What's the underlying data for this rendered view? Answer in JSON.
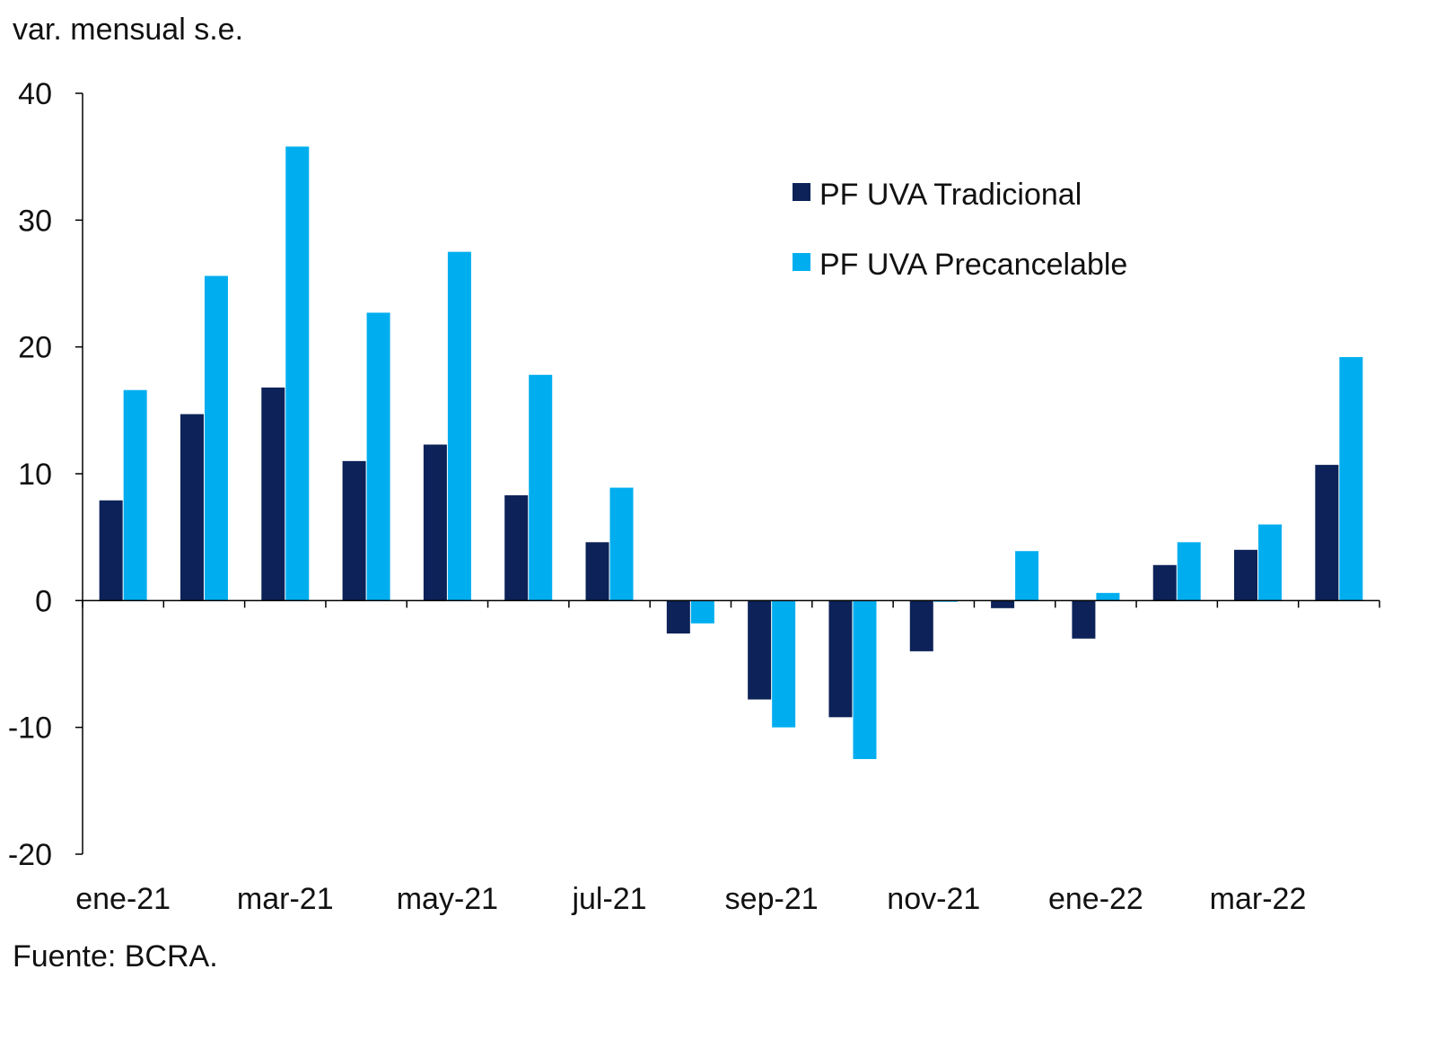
{
  "chart_data": {
    "type": "bar",
    "ylabel": "var. mensual s.e.",
    "source": "Fuente: BCRA.",
    "ylim": [
      -20,
      40
    ],
    "yticks": [
      40,
      30,
      20,
      10,
      0,
      -10,
      -20
    ],
    "categories": [
      "ene-21",
      "feb-21",
      "mar-21",
      "abr-21",
      "may-21",
      "jun-21",
      "jul-21",
      "ago-21",
      "sep-21",
      "oct-21",
      "nov-21",
      "dic-21",
      "ene-22",
      "feb-22",
      "mar-22",
      "abr-22"
    ],
    "xtick_labels": [
      "ene-21",
      "",
      "mar-21",
      "",
      "may-21",
      "",
      "jul-21",
      "",
      "sep-21",
      "",
      "nov-21",
      "",
      "ene-22",
      "",
      "mar-22",
      ""
    ],
    "legend_position": "top-right",
    "series": [
      {
        "name": "PF UVA Tradicional",
        "color": "#0c2258",
        "values": [
          7.9,
          14.7,
          16.8,
          11.0,
          12.3,
          8.3,
          4.6,
          -2.6,
          -7.8,
          -9.2,
          -4.0,
          -0.6,
          -3.0,
          2.8,
          4.0,
          10.7
        ]
      },
      {
        "name": "PF UVA Precancelable",
        "color": "#00aeef",
        "values": [
          16.6,
          25.6,
          35.8,
          22.7,
          27.5,
          17.8,
          8.9,
          -1.8,
          -10.0,
          -12.5,
          -0.1,
          3.9,
          0.6,
          4.6,
          6.0,
          19.2
        ]
      }
    ]
  }
}
